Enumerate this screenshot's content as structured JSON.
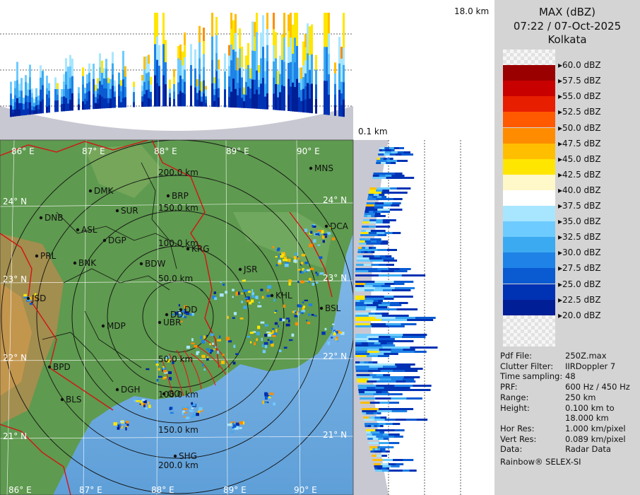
{
  "legend": {
    "title": "MAX (dBZ)",
    "datetime": "07:22 / 07-Oct-2025",
    "station": "Kolkata",
    "entries": [
      {
        "label": "60.0 dBZ",
        "color": "checker"
      },
      {
        "label": "57.5 dBZ",
        "color": "#9a0000"
      },
      {
        "label": "55.0 dBZ",
        "color": "#c80000"
      },
      {
        "label": "52.5 dBZ",
        "color": "#e81e00"
      },
      {
        "label": "50.0 dBZ",
        "color": "#ff5a00"
      },
      {
        "label": "47.5 dBZ",
        "color": "#ff8c00"
      },
      {
        "label": "45.0 dBZ",
        "color": "#ffbe00"
      },
      {
        "label": "42.5 dBZ",
        "color": "#ffe600"
      },
      {
        "label": "40.0 dBZ",
        "color": "#fff8c8"
      },
      {
        "label": "37.5 dBZ",
        "color": "#ffffff"
      },
      {
        "label": "35.0 dBZ",
        "color": "#a8e6ff"
      },
      {
        "label": "32.5 dBZ",
        "color": "#6ecbff"
      },
      {
        "label": "30.0 dBZ",
        "color": "#3caaf0"
      },
      {
        "label": "27.5 dBZ",
        "color": "#1e82e6"
      },
      {
        "label": "25.0 dBZ",
        "color": "#0a5ad2"
      },
      {
        "label": "22.5 dBZ",
        "color": "#0032b4"
      },
      {
        "label": "20.0 dBZ",
        "color": "#001e96"
      }
    ]
  },
  "info": [
    {
      "label": "Pdf File:",
      "value": "250Z.max"
    },
    {
      "label": "Clutter Filter:",
      "value": "IIRDoppler 7"
    },
    {
      "label": "Time sampling:",
      "value": "48"
    },
    {
      "label": "PRF:",
      "value": "600 Hz / 450 Hz"
    },
    {
      "label": "Range:",
      "value": "250 km"
    },
    {
      "label": "Height:",
      "value": "0.100 km to"
    },
    {
      "label": "",
      "value": "18.000 km"
    },
    {
      "label": "Hor Res:",
      "value": "1.000 km/pixel"
    },
    {
      "label": "Vert Res:",
      "value": "0.089 km/pixel"
    },
    {
      "label": "Data:",
      "value": "Radar Data"
    }
  ],
  "credit": "Rainbow® SELEX-SI",
  "height_top_label": "18.0 km",
  "height_bottom_label": "0.1 km",
  "map": {
    "lon_labels": [
      "86° E",
      "87° E",
      "88° E",
      "89° E",
      "90° E"
    ],
    "lat_labels": [
      "24° N",
      "23° N",
      "22° N",
      "21° N"
    ],
    "range_labels": [
      "200.0 km",
      "150.0 km",
      "100.0 km",
      "50.0 km",
      "50.0 km",
      "100.0 km",
      "150.0 km",
      "200.0 km"
    ],
    "cities": [
      "DMK",
      "DNB",
      "SUR",
      "BRP",
      "ASL",
      "DGP",
      "PRL",
      "BNK",
      "BDW",
      "KRG",
      "JSR",
      "DD",
      "DD",
      "JSD",
      "MDP",
      "UBR",
      "BPD",
      "DGH",
      "BLS",
      "KHL",
      "BSL",
      "MNS",
      "DCA",
      "SHG",
      "GO"
    ]
  }
}
